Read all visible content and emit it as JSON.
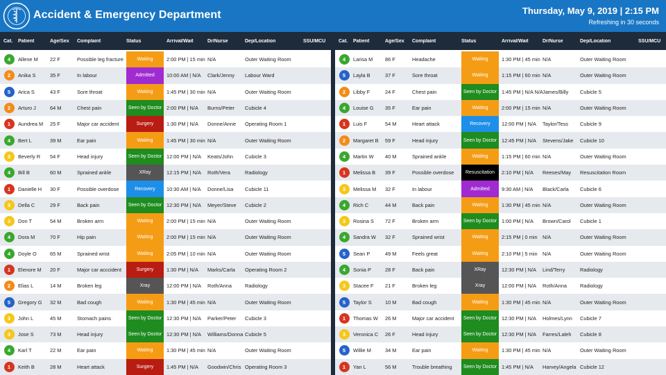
{
  "header": {
    "title": "Accident & Emergency Department",
    "datetime": "Thursday, May 9, 2019 | 2:15 PM",
    "refresh": "Refreshing in 30 seconds",
    "logo_icon": "hospital-seal-logo",
    "background_color": "#1976c4"
  },
  "columns": [
    "Cat.",
    "Patient",
    "Age/Sex",
    "Complaint",
    "Status",
    "Arrival/Wait",
    "Dr/Nurse",
    "Dep/Location",
    "SSU/MCU"
  ],
  "category_colors": {
    "1": "#d6361f",
    "2": "#f28c18",
    "3": "#f5c71a",
    "4": "#39a82e",
    "5": "#2563c9"
  },
  "status_colors": {
    "Waiting": "#f59c15",
    "Admitted": "#a02bd0",
    "Seen by Doctor": "#1f8c1f",
    "Surgery": "#b81c12",
    "XRay": "#555555",
    "Xray": "#555555",
    "Recovery": "#1e8fe8",
    "Resuscitation": "#000000"
  },
  "left_rows": [
    {
      "cat": "4",
      "patient": "Allene M",
      "age": "22 F",
      "complaint": "Possible leg fracture",
      "status": "Waiting",
      "arrival": "2:00 PM | 15 min",
      "dr": "N/A",
      "dep": "Outer Waiting Room",
      "ssu": ""
    },
    {
      "cat": "2",
      "patient": "Anika S",
      "age": "35 F",
      "complaint": "In labour",
      "status": "Admitted",
      "arrival": "10:00 AM | N/A",
      "dr": "Clark/Jenny",
      "dep": "Labour Ward",
      "ssu": ""
    },
    {
      "cat": "5",
      "patient": "Arica S",
      "age": "43 F",
      "complaint": "Sore throat",
      "status": "Waiting",
      "arrival": "1:45 PM | 30 min",
      "dr": "N/A",
      "dep": "Outer Waiting Room",
      "ssu": ""
    },
    {
      "cat": "2",
      "patient": "Arturo J",
      "age": "64 M",
      "complaint": "Chest pain",
      "status": "Seen by Doctor",
      "arrival": "2:00 PM | N/A",
      "dr": "Burns/Peter",
      "dep": "Cubicle 4",
      "ssu": ""
    },
    {
      "cat": "1",
      "patient": "Aundrea M",
      "age": "25 F",
      "complaint": "Major car accident",
      "status": "Surgery",
      "arrival": "1:30 PM | N/A",
      "dr": "Donne/Anne",
      "dep": "Operating Room 1",
      "ssu": ""
    },
    {
      "cat": "4",
      "patient": "Bert L",
      "age": "39 M",
      "complaint": "Ear pain",
      "status": "Waiting",
      "arrival": "1:45 PM | 30 min",
      "dr": "N/A",
      "dep": "Outer Waiting Room",
      "ssu": ""
    },
    {
      "cat": "3",
      "patient": "Beverly R",
      "age": "54 F",
      "complaint": "Head injury",
      "status": "Seen by Doctor",
      "arrival": "12:00 PM | N/A",
      "dr": "Keats/John",
      "dep": "Cubicle 3",
      "ssu": ""
    },
    {
      "cat": "4",
      "patient": "Bill B",
      "age": "60 M",
      "complaint": "Sprained ankle",
      "status": "XRay",
      "arrival": "12:15 PM | N/A",
      "dr": "Roth/Vera",
      "dep": "Radiology",
      "ssu": ""
    },
    {
      "cat": "1",
      "patient": "Danielle H",
      "age": "30 F",
      "complaint": "Possible overdose",
      "status": "Recovery",
      "arrival": "10:30 AM | N/A",
      "dr": "Donne/Lisa",
      "dep": "Cubicle 11",
      "ssu": ""
    },
    {
      "cat": "3",
      "patient": "Della C",
      "age": "29 F",
      "complaint": "Back pain",
      "status": "Seen by Doctor",
      "arrival": "12:30 PM | N/A",
      "dr": "Meyer/Steve",
      "dep": "Cubicle 2",
      "ssu": ""
    },
    {
      "cat": "3",
      "patient": "Don T",
      "age": "54 M",
      "complaint": "Broken arm",
      "status": "Waiting",
      "arrival": "2:00 PM | 15 min",
      "dr": "N/A",
      "dep": "Outer Waiting Room",
      "ssu": ""
    },
    {
      "cat": "4",
      "patient": "Dora M",
      "age": "70 F",
      "complaint": "Hip pain",
      "status": "Waiting",
      "arrival": "2:00 PM | 15 min",
      "dr": "N/A",
      "dep": "Outer Waiting Room",
      "ssu": ""
    },
    {
      "cat": "4",
      "patient": "Doyle O",
      "age": "65 M",
      "complaint": "Sprained wrist",
      "status": "Waiting",
      "arrival": "2:05 PM | 10 min",
      "dr": "N/A",
      "dep": "Outer Waiting Room",
      "ssu": ""
    },
    {
      "cat": "1",
      "patient": "Elenore M",
      "age": "20 F",
      "complaint": "Major car acccident",
      "status": "Surgery",
      "arrival": "1:30 PM | N/A",
      "dr": "Marks/Carla",
      "dep": "Operating Room 2",
      "ssu": ""
    },
    {
      "cat": "2",
      "patient": "Elias L",
      "age": "14 M",
      "complaint": "Broken leg",
      "status": "Xray",
      "arrival": "12:00 PM | N/A",
      "dr": "Roth/Anna",
      "dep": "Radiology",
      "ssu": ""
    },
    {
      "cat": "5",
      "patient": "Gregory G",
      "age": "32 M",
      "complaint": "Bad cough",
      "status": "Waiting",
      "arrival": "1:30 PM | 45 min",
      "dr": "N/A",
      "dep": "Outer Waiting Room",
      "ssu": ""
    },
    {
      "cat": "3",
      "patient": "John L",
      "age": "45 M",
      "complaint": "Stomach pains",
      "status": "Seen by Doctor",
      "arrival": "12:30 PM | N/A",
      "dr": "Parker/Peter",
      "dep": "Cubicle 3",
      "ssu": ""
    },
    {
      "cat": "3",
      "patient": "Jose S",
      "age": "73 M",
      "complaint": "Head injury",
      "status": "Seen by Doctor",
      "arrival": "12:30 PM | N/A",
      "dr": "Williams/Donna",
      "dep": "Cubicle 5",
      "ssu": ""
    },
    {
      "cat": "4",
      "patient": "Karl T",
      "age": "22 M",
      "complaint": "Ear pain",
      "status": "Waiting",
      "arrival": "1:30 PM | 45 min",
      "dr": "N/A",
      "dep": "Outer Waiting Room",
      "ssu": ""
    },
    {
      "cat": "1",
      "patient": "Keith B",
      "age": "28 M",
      "complaint": "Heart attack",
      "status": "Surgery",
      "arrival": "1:45 PM | N/A",
      "dr": "Goodwin/Chris",
      "dep": "Operating Room 3",
      "ssu": ""
    }
  ],
  "right_rows": [
    {
      "cat": "4",
      "patient": "Larisa M",
      "age": "86 F",
      "complaint": "Headache",
      "status": "Waiting",
      "arrival": "1:30 PM | 45 min",
      "dr": "N/A",
      "dep": "Outer Waiting Room",
      "ssu": ""
    },
    {
      "cat": "5",
      "patient": "Layla B",
      "age": "37 F",
      "complaint": "Sore throat",
      "status": "Waiting",
      "arrival": "1:15 PM | 60 min",
      "dr": "N/A",
      "dep": "Outer Waiting Room",
      "ssu": ""
    },
    {
      "cat": "2",
      "patient": "Libby F",
      "age": "24 F",
      "complaint": "Chest pain",
      "status": "Seen by Doctor",
      "arrival": "1:45 PM | N/A N/A",
      "dr": "James/Billy",
      "dep": "Cubicle 5",
      "ssu": ""
    },
    {
      "cat": "4",
      "patient": "Louise G",
      "age": "35 F",
      "complaint": "Ear pain",
      "status": "Waiting",
      "arrival": "2:00 PM | 15 min",
      "dr": "N/A",
      "dep": "Outer Waiting Room",
      "ssu": ""
    },
    {
      "cat": "1",
      "patient": "Luis F",
      "age": "54 M",
      "complaint": "Heart attack",
      "status": "Recovery",
      "arrival": "12:00 PM | N/A",
      "dr": "Taylor/Tess",
      "dep": "Cubicle 9",
      "ssu": ""
    },
    {
      "cat": "2",
      "patient": "Margaret B",
      "age": "59 F",
      "complaint": "Head injury",
      "status": "Seen by Doctor",
      "arrival": "12:45 PM | N/A",
      "dr": "Stevens/Jake",
      "dep": "Cubicle 10",
      "ssu": ""
    },
    {
      "cat": "4",
      "patient": "Martin W",
      "age": "40 M",
      "complaint": "Sprained ankle",
      "status": "Waiting",
      "arrival": "1:15 PM | 60 min",
      "dr": "N/A",
      "dep": "Outer Waiting Room",
      "ssu": ""
    },
    {
      "cat": "1",
      "patient": "Melissa B",
      "age": "39 F",
      "complaint": "Possible overdose",
      "status": "Resuscitation",
      "arrival": "2:10 PM | N/A",
      "dr": "Reeses/May",
      "dep": "Resuscitation Room",
      "ssu": ""
    },
    {
      "cat": "3",
      "patient": "Melissa M",
      "age": "32 F",
      "complaint": "In labour",
      "status": "Admitted",
      "arrival": "9:30 AM | N/A",
      "dr": "Black/Carla",
      "dep": "Cubicle 6",
      "ssu": ""
    },
    {
      "cat": "4",
      "patient": "Rich C",
      "age": "44 M",
      "complaint": "Back pain",
      "status": "Waiting",
      "arrival": "1:30 PM | 45 min",
      "dr": "N/A",
      "dep": "Outer Waiting Room",
      "ssu": ""
    },
    {
      "cat": "3",
      "patient": "Rosina S",
      "age": "72 F",
      "complaint": "Broken arm",
      "status": "Seen by Doctor",
      "arrival": "1:00 PM | N/A",
      "dr": "Brown/Carol",
      "dep": "Cubicle 1",
      "ssu": ""
    },
    {
      "cat": "4",
      "patient": "Sandra W",
      "age": "32 F",
      "complaint": "Sprained wrist",
      "status": "Waiting",
      "arrival": "2:15 PM | 0 min",
      "dr": "N/A",
      "dep": "Outer Waiting Room",
      "ssu": ""
    },
    {
      "cat": "5",
      "patient": "Sean P",
      "age": "49 M",
      "complaint": "Feels great",
      "status": "Waiting",
      "arrival": "2:10 PM | 5 min",
      "dr": "N/A",
      "dep": "Outer Waiting Room",
      "ssu": ""
    },
    {
      "cat": "4",
      "patient": "Sonia P",
      "age": "28 F",
      "complaint": "Back pain",
      "status": "XRay",
      "arrival": "12:30 PM | N/A",
      "dr": "Lind/Terry",
      "dep": "Radiology",
      "ssu": ""
    },
    {
      "cat": "3",
      "patient": "Stacee F",
      "age": "21 F",
      "complaint": "Broken leg",
      "status": "Xray",
      "arrival": "12:00 PM | N/A",
      "dr": "Roth/Anna",
      "dep": "Radiology",
      "ssu": ""
    },
    {
      "cat": "5",
      "patient": "Taylor S",
      "age": "10 M",
      "complaint": "Bad cough",
      "status": "Waiting",
      "arrival": "1:30 PM | 45 min",
      "dr": "N/A",
      "dep": "Outer Waiting Room",
      "ssu": ""
    },
    {
      "cat": "1",
      "patient": "Thomas W",
      "age": "26 M",
      "complaint": "Major car accident",
      "status": "Seen by Doctor",
      "arrival": "12:30 PM | N/A",
      "dr": "Holmes/Lynn",
      "dep": "Cubicle 7",
      "ssu": ""
    },
    {
      "cat": "3",
      "patient": "Veronica C",
      "age": "26 F",
      "complaint": "Head injury",
      "status": "Seen by Doctor",
      "arrival": "12:30 PM | N/A",
      "dr": "Farres/Laleh",
      "dep": "Cubicle 8",
      "ssu": ""
    },
    {
      "cat": "5",
      "patient": "Willie M",
      "age": "34 M",
      "complaint": "Ear pain",
      "status": "Waiting",
      "arrival": "1:30 PM | 45 min",
      "dr": "N/A",
      "dep": "Outer Waiting Room",
      "ssu": ""
    },
    {
      "cat": "1",
      "patient": "Yan L",
      "age": "56 M",
      "complaint": "Trouble breathing",
      "status": "Seen by Doctor",
      "arrival": "1:45 PM | N/A",
      "dr": "Harvey/Angela",
      "dep": "Cubicle 12",
      "ssu": ""
    }
  ]
}
